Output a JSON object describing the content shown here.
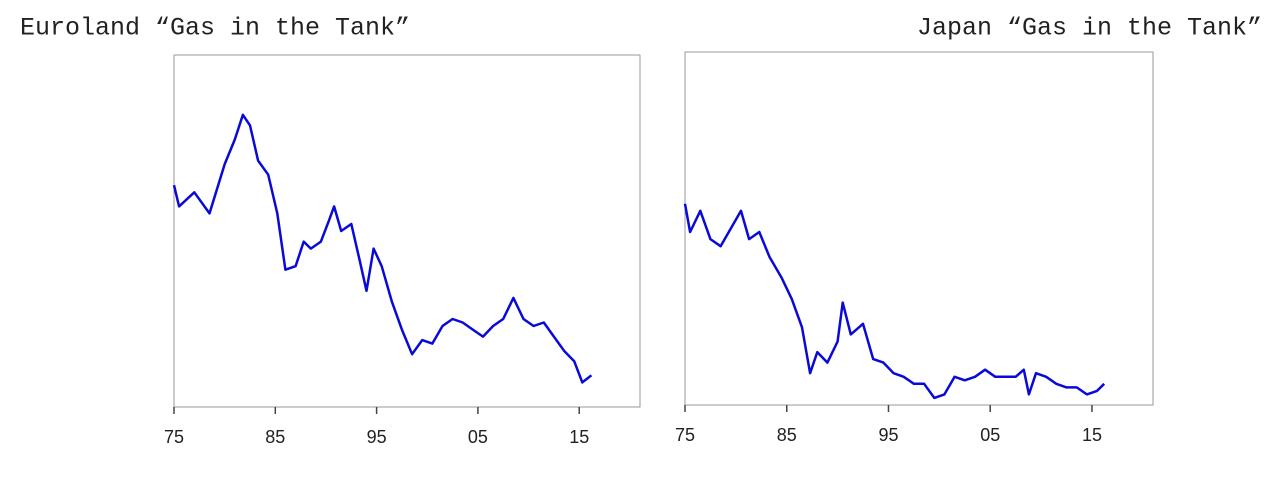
{
  "chart_data": [
    {
      "type": "line",
      "title": "Euroland “Gas in the Tank”",
      "xlim": [
        1975,
        2021
      ],
      "ylim": [
        0,
        100
      ],
      "xticks": [
        {
          "value": 1975,
          "label": "75"
        },
        {
          "value": 1985,
          "label": "85"
        },
        {
          "value": 1995,
          "label": "95"
        },
        {
          "value": 2005,
          "label": "05"
        },
        {
          "value": 2015,
          "label": "15"
        }
      ],
      "series": [
        {
          "color": "#0a0ad8",
          "x": [
            1975,
            1975.5,
            1977,
            1978.5,
            1980,
            1981,
            1981.8,
            1982.5,
            1983.3,
            1984.3,
            1985.2,
            1986,
            1987,
            1987.8,
            1988.5,
            1989.5,
            1990.3,
            1990.8,
            1991.5,
            1992.5,
            1993.3,
            1994,
            1994.7,
            1995.5,
            1996.5,
            1997.5,
            1998.5,
            1999.5,
            2000.5,
            2001.5,
            2002.5,
            2003.5,
            2004.5,
            2005.5,
            2006.5,
            2007.5,
            2008.5,
            2009.5,
            2010.5,
            2011.5,
            2012.5,
            2013.5,
            2014.5,
            2015.3,
            2016.2
          ],
          "values": [
            63,
            57,
            61,
            55,
            69,
            76,
            83,
            80,
            70,
            66,
            55,
            39,
            40,
            47,
            45,
            47,
            53,
            57,
            50,
            52,
            42,
            33,
            45,
            40,
            30,
            22,
            15,
            19,
            18,
            23,
            25,
            24,
            22,
            20,
            23,
            25,
            31,
            25,
            23,
            24,
            20,
            16,
            13,
            7,
            9
          ]
        }
      ]
    },
    {
      "type": "line",
      "title": "Japan “Gas in the Tank”",
      "xlim": [
        1975,
        2021
      ],
      "ylim": [
        0,
        100
      ],
      "xticks": [
        {
          "value": 1975,
          "label": "75"
        },
        {
          "value": 1985,
          "label": "85"
        },
        {
          "value": 1995,
          "label": "95"
        },
        {
          "value": 2005,
          "label": "05"
        },
        {
          "value": 2015,
          "label": "15"
        }
      ],
      "series": [
        {
          "color": "#0a0ad8",
          "x": [
            1975,
            1975.5,
            1976.5,
            1977.5,
            1978.5,
            1979.5,
            1980.5,
            1981.3,
            1982.3,
            1983.3,
            1984.5,
            1985.5,
            1986.5,
            1987.3,
            1988,
            1989,
            1990,
            1990.5,
            1991.3,
            1992.5,
            1993.5,
            1994.5,
            1995.5,
            1996.5,
            1997.5,
            1998.5,
            1999.5,
            2000.5,
            2001.5,
            2002.5,
            2003.5,
            2004.5,
            2005.5,
            2006.5,
            2007.5,
            2008.3,
            2008.8,
            2009.5,
            2010.5,
            2011.5,
            2012.5,
            2013.5,
            2014.5,
            2015.5,
            2016.2
          ],
          "values": [
            57,
            49,
            55,
            47,
            45,
            50,
            55,
            47,
            49,
            42,
            36,
            30,
            22,
            9,
            15,
            12,
            18,
            29,
            20,
            23,
            13,
            12,
            9,
            8,
            6,
            6,
            2,
            3,
            8,
            7,
            8,
            10,
            8,
            8,
            8,
            10,
            3,
            9,
            8,
            6,
            5,
            5,
            3,
            4,
            6
          ]
        }
      ]
    }
  ]
}
